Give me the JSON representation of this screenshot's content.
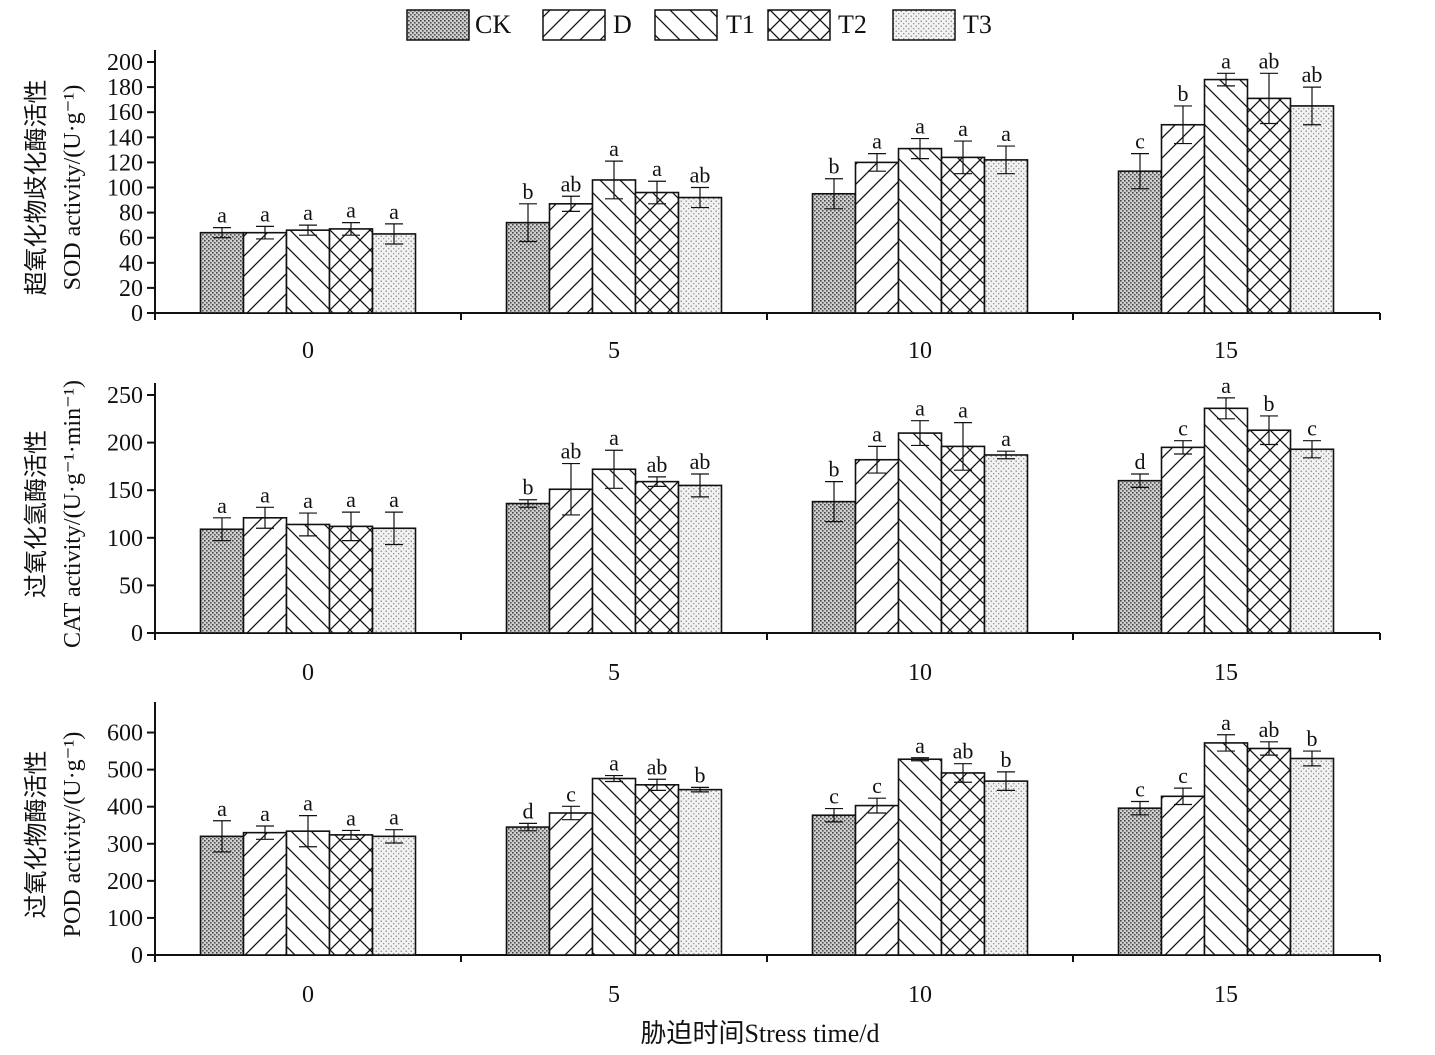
{
  "legend": {
    "items": [
      {
        "name": "CK",
        "pattern": "dots"
      },
      {
        "name": "D",
        "pattern": "diag-up"
      },
      {
        "name": "T1",
        "pattern": "diag-down"
      },
      {
        "name": "T2",
        "pattern": "cross"
      },
      {
        "name": "T3",
        "pattern": "fine-dots"
      }
    ]
  },
  "x_axis": {
    "title": "胁迫时间Stress time/d",
    "categories": [
      "0",
      "5",
      "10",
      "15"
    ]
  },
  "chart_data": [
    {
      "type": "bar",
      "ylabel_cn": "超氧化物歧化酶活性",
      "ylabel_en": "SOD activity/(U·g⁻¹)",
      "categories": [
        "0",
        "5",
        "10",
        "15"
      ],
      "ylim": [
        0,
        200
      ],
      "yticks": [
        0,
        20,
        40,
        60,
        80,
        100,
        120,
        140,
        160,
        180,
        200
      ],
      "series": [
        {
          "name": "CK",
          "values": [
            64,
            72,
            95,
            113
          ],
          "errors": [
            4,
            15,
            12,
            14
          ],
          "labels": [
            "a",
            "b",
            "b",
            "c"
          ]
        },
        {
          "name": "D",
          "values": [
            64,
            87,
            120,
            150
          ],
          "errors": [
            5,
            6,
            7,
            15
          ],
          "labels": [
            "a",
            "ab",
            "a",
            "b"
          ]
        },
        {
          "name": "T1",
          "values": [
            66,
            106,
            131,
            186
          ],
          "errors": [
            4,
            15,
            8,
            5
          ],
          "labels": [
            "a",
            "a",
            "a",
            "a"
          ]
        },
        {
          "name": "T2",
          "values": [
            67,
            96,
            124,
            171
          ],
          "errors": [
            5,
            9,
            13,
            20
          ],
          "labels": [
            "a",
            "a",
            "a",
            "ab"
          ]
        },
        {
          "name": "T3",
          "values": [
            63,
            92,
            122,
            165
          ],
          "errors": [
            8,
            8,
            11,
            15
          ],
          "labels": [
            "a",
            "ab",
            "a",
            "ab"
          ]
        }
      ]
    },
    {
      "type": "bar",
      "ylabel_cn": "过氧化氢酶活性",
      "ylabel_en": "CAT activity/(U·g⁻¹·min⁻¹)",
      "categories": [
        "0",
        "5",
        "10",
        "15"
      ],
      "ylim": [
        0,
        250
      ],
      "yticks": [
        0,
        50,
        100,
        150,
        200,
        250
      ],
      "series": [
        {
          "name": "CK",
          "values": [
            109,
            136,
            138,
            160
          ],
          "errors": [
            12,
            4,
            21,
            7
          ],
          "labels": [
            "a",
            "b",
            "b",
            "d"
          ]
        },
        {
          "name": "D",
          "values": [
            121,
            151,
            182,
            195
          ],
          "errors": [
            11,
            27,
            14,
            7
          ],
          "labels": [
            "a",
            "ab",
            "a",
            "c"
          ]
        },
        {
          "name": "T1",
          "values": [
            114,
            172,
            210,
            236
          ],
          "errors": [
            12,
            20,
            13,
            11
          ],
          "labels": [
            "a",
            "a",
            "a",
            "a"
          ]
        },
        {
          "name": "T2",
          "values": [
            112,
            159,
            196,
            213
          ],
          "errors": [
            15,
            5,
            25,
            15
          ],
          "labels": [
            "a",
            "ab",
            "a",
            "b"
          ]
        },
        {
          "name": "T3",
          "values": [
            110,
            155,
            187,
            193
          ],
          "errors": [
            17,
            12,
            4,
            9
          ],
          "labels": [
            "a",
            "ab",
            "a",
            "c"
          ]
        }
      ]
    },
    {
      "type": "bar",
      "ylabel_cn": "过氧化物酶活性",
      "ylabel_en": "POD activity/(U·g⁻¹)",
      "categories": [
        "0",
        "5",
        "10",
        "15"
      ],
      "ylim": [
        0,
        650
      ],
      "yticks": [
        0,
        100,
        200,
        300,
        400,
        500,
        600
      ],
      "series": [
        {
          "name": "CK",
          "values": [
            320,
            345,
            377,
            396
          ],
          "errors": [
            42,
            10,
            18,
            18
          ],
          "labels": [
            "a",
            "d",
            "c",
            "c"
          ]
        },
        {
          "name": "D",
          "values": [
            330,
            383,
            403,
            428
          ],
          "errors": [
            18,
            18,
            20,
            22
          ],
          "labels": [
            "a",
            "c",
            "c",
            "c"
          ]
        },
        {
          "name": "T1",
          "values": [
            334,
            476,
            528,
            572
          ],
          "errors": [
            42,
            8,
            4,
            22
          ],
          "labels": [
            "a",
            "a",
            "a",
            "a"
          ]
        },
        {
          "name": "T2",
          "values": [
            324,
            459,
            491,
            557
          ],
          "errors": [
            12,
            15,
            25,
            18
          ],
          "labels": [
            "a",
            "ab",
            "ab",
            "ab"
          ]
        },
        {
          "name": "T3",
          "values": [
            320,
            446,
            469,
            530
          ],
          "errors": [
            18,
            6,
            25,
            20
          ],
          "labels": [
            "a",
            "b",
            "b",
            "b"
          ]
        }
      ]
    }
  ]
}
